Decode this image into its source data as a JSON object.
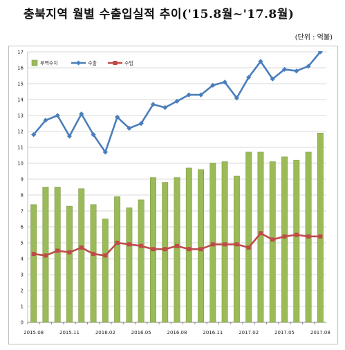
{
  "title": "충북지역 월별 수출입실적 추이('15.8월~'17.8월)",
  "unit_label": "(단위 : 억불)",
  "colors": {
    "trade_balance": "#9bbb59",
    "export": "#4a7ebb",
    "import": "#be4b48"
  },
  "chart_data": {
    "type": "bar",
    "categories": [
      "2015.08",
      "2015.09",
      "2015.10",
      "2015.11",
      "2015.12",
      "2016.01",
      "2016.02",
      "2016.03",
      "2016.04",
      "2016.05",
      "2016.06",
      "2016.07",
      "2016.08",
      "2016.09",
      "2016.10",
      "2016.11",
      "2016.12",
      "2017.01",
      "2017.02",
      "2017.03",
      "2017.04",
      "2017.05",
      "2017.06",
      "2017.07",
      "2017.08"
    ],
    "x_tick_labels": [
      "2015.08",
      "2015.11",
      "2016.02",
      "2016.05",
      "2016.08",
      "2016.11",
      "2017.02",
      "2017.05",
      "2017.08"
    ],
    "series": [
      {
        "name": "무역수지",
        "type": "bar",
        "values": [
          7.4,
          8.5,
          8.5,
          7.3,
          8.4,
          7.4,
          6.5,
          7.9,
          7.2,
          7.7,
          9.1,
          8.8,
          9.1,
          9.7,
          9.6,
          10.0,
          10.1,
          9.2,
          10.7,
          10.7,
          10.1,
          10.4,
          10.2,
          10.7,
          11.9
        ]
      },
      {
        "name": "수출",
        "type": "line",
        "values": [
          11.8,
          12.7,
          13.0,
          11.7,
          13.1,
          11.8,
          10.7,
          12.9,
          12.2,
          12.5,
          13.7,
          13.5,
          13.9,
          14.3,
          14.3,
          14.9,
          15.1,
          14.1,
          15.4,
          16.4,
          15.3,
          15.9,
          15.8,
          16.1,
          17.0
        ]
      },
      {
        "name": "수입",
        "type": "line",
        "values": [
          4.3,
          4.2,
          4.5,
          4.4,
          4.7,
          4.3,
          4.2,
          5.0,
          4.9,
          4.8,
          4.6,
          4.6,
          4.8,
          4.6,
          4.6,
          4.9,
          4.9,
          4.9,
          4.7,
          5.6,
          5.2,
          5.4,
          5.5,
          5.4,
          5.4
        ]
      }
    ],
    "ylim": [
      0,
      17
    ],
    "y_ticks": [
      0,
      1,
      2,
      3,
      4,
      5,
      6,
      7,
      8,
      9,
      10,
      11,
      12,
      13,
      14,
      15,
      16,
      17
    ],
    "grid": "horizontal",
    "legend": "top-left",
    "xlabel": "",
    "ylabel": ""
  }
}
